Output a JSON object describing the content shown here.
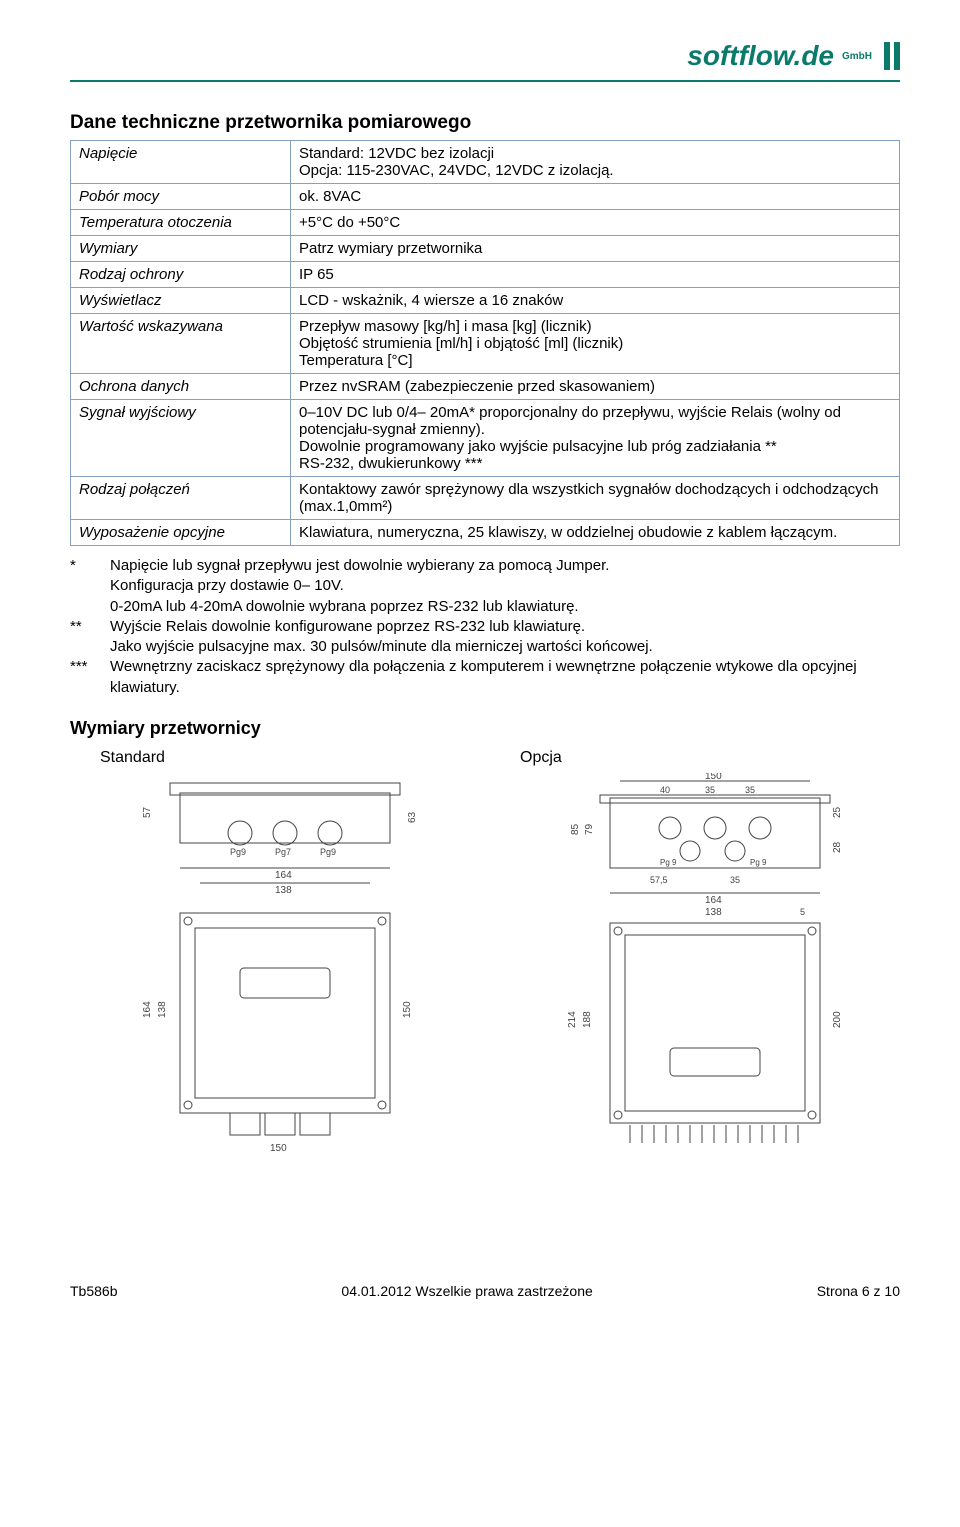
{
  "logo": {
    "text": "softflow.de",
    "suffix": "GmbH"
  },
  "title": "Dane techniczne przetwornika pomiarowego",
  "table": {
    "rows": [
      {
        "label": "Napięcie",
        "value": "Standard: 12VDC bez izolacji\nOpcja: 115-230VAC, 24VDC, 12VDC z izolacją."
      },
      {
        "label": "Pobór mocy",
        "value": "ok. 8VAC"
      },
      {
        "label": "Temperatura otoczenia",
        "value": "+5°C do +50°C"
      },
      {
        "label": "Wymiary",
        "value": "Patrz wymiary przetwornika"
      },
      {
        "label": "Rodzaj ochrony",
        "value": "IP 65"
      },
      {
        "label": "Wyświetlacz",
        "value": "LCD - wskażnik, 4 wiersze a 16 znaków"
      },
      {
        "label": "Wartość wskazywana",
        "value": "Przepływ masowy [kg/h] i masa [kg] (licznik)\nObjętość strumienia [ml/h] i objątość [ml] (licznik)\nTemperatura [°C]"
      },
      {
        "label": "Ochrona danych",
        "value": "Przez nvSRAM (zabezpieczenie przed skasowaniem)"
      },
      {
        "label": "Sygnał wyjściowy",
        "value": "0–10V DC lub 0/4– 20mA* proporcjonalny do przepływu, wyjście Relais (wolny od potencjału-sygnał zmienny).\nDowolnie programowany jako wyjście pulsacyjne lub próg zadziałania **\nRS-232, dwukierunkowy ***"
      },
      {
        "label": "Rodzaj połączeń",
        "value": "Kontaktowy zawór sprężynowy dla wszystkich sygnałów dochodzących i odchodzących (max.1,0mm²)"
      },
      {
        "label": "Wyposażenie opcyjne",
        "value": "Klawiatura, numeryczna, 25 klawiszy, w oddzielnej obudowie z kablem łączącym."
      }
    ]
  },
  "notes": {
    "star1_line1": "Napięcie lub sygnał przepływu jest dowolnie wybierany za pomocą Jumper.",
    "star1_line2": "Konfiguracja przy dostawie 0– 10V.",
    "star1_line3": "0-20mA lub 4-20mA dowolnie wybrana poprzez RS-232 lub klawiaturę.",
    "star2_line1": "Wyjście Relais dowolnie konfigurowane poprzez RS-232 lub klawiaturę.",
    "star2_line2": "Jako wyjście pulsacyjne max. 30 pulsów/minute dla mierniczej wartości końcowej.",
    "star3_line1": "Wewnętrzny zaciskacz sprężynowy dla połączenia z komputerem i wewnętrzne połączenie wtykowe dla opcyjnej klawiatury."
  },
  "subtitle": "Wymiary przetwornicy",
  "drawings": {
    "standard": {
      "label": "Standard",
      "dims": {
        "h1": "57",
        "h2": "63",
        "w1": "164",
        "w2": "138",
        "h3": "164",
        "h4": "138",
        "h5": "150",
        "w3": "150",
        "glands": "Pg9  Pg7  Pg9"
      }
    },
    "opcja": {
      "label": "Opcja",
      "dims": {
        "top_w": "150",
        "top_a": "40",
        "top_b": "35",
        "top_c": "35",
        "h1": "85",
        "h2": "79",
        "h3": "25",
        "h4": "28",
        "bot_a": "57,5",
        "bot_b": "35",
        "w1": "164",
        "w2": "138",
        "w3": "5",
        "hfront1": "214",
        "hfront2": "188",
        "hfront3": "200",
        "glands": "Pg 9  Pg 9"
      }
    }
  },
  "footer": {
    "left": "Tb586b",
    "center": "04.01.2012  Wszelkie prawa zastrzeżone",
    "right": "Strona 6 z 10"
  },
  "colors": {
    "brand": "#0a7a6a",
    "border": "#88a0c0"
  }
}
